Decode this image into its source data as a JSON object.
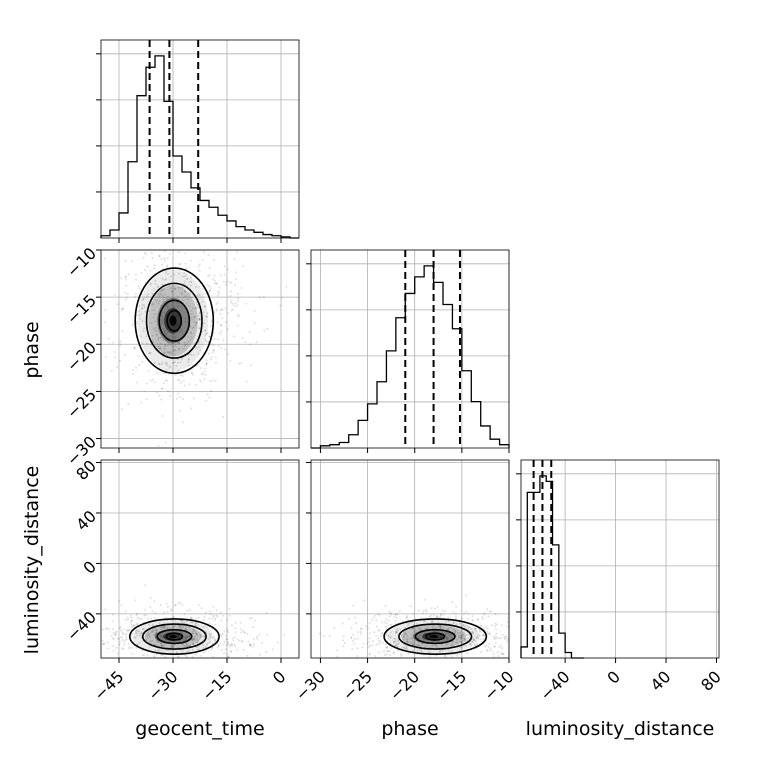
{
  "chart_data": {
    "type": "corner",
    "parameters": [
      "geocent_time",
      "phase",
      "luminosity_distance"
    ],
    "ranges": {
      "geocent_time": [
        -50,
        5
      ],
      "phase": [
        -31,
        -10
      ],
      "luminosity_distance": [
        -75,
        82
      ]
    },
    "ticks": {
      "geocent_time": [
        -45,
        -30,
        -15,
        0
      ],
      "phase": [
        -30,
        -25,
        -20,
        -15,
        -10
      ],
      "luminosity_distance": [
        -40,
        0,
        40,
        80
      ]
    },
    "xlabels": [
      "geocent_time",
      "phase",
      "luminosity_distance"
    ],
    "ylabels": [
      "",
      "phase",
      "luminosity_distance"
    ],
    "grid": true,
    "quantiles": {
      "geocent_time": [
        -36.5,
        -31,
        -23
      ],
      "phase": [
        -21,
        -18,
        -15.2
      ],
      "luminosity_distance": [
        -65,
        -58,
        -51
      ]
    },
    "marginals": [
      {
        "param": "geocent_time",
        "bin_edges": [
          -50,
          -47.5,
          -45,
          -42.5,
          -40,
          -37.5,
          -35,
          -32.5,
          -30,
          -27.5,
          -25,
          -22.5,
          -20,
          -17.5,
          -15,
          -12.5,
          -10,
          -7.5,
          -5,
          -2.5,
          0,
          2.5,
          5
        ],
        "counts": [
          2,
          7,
          22,
          67,
          125,
          150,
          160,
          120,
          72,
          58,
          44,
          33,
          27,
          20,
          15,
          10,
          7,
          5,
          3,
          2,
          1,
          0
        ]
      },
      {
        "param": "phase",
        "bin_edges": [
          -31,
          -30,
          -29,
          -28,
          -27,
          -26,
          -25,
          -24,
          -23,
          -22,
          -21,
          -20,
          -19,
          -18,
          -17,
          -16,
          -15,
          -14,
          -13,
          -12,
          -11,
          -10
        ],
        "counts": [
          0,
          2,
          3,
          5,
          12,
          25,
          40,
          60,
          88,
          118,
          140,
          155,
          165,
          150,
          130,
          108,
          70,
          42,
          20,
          8,
          3
        ]
      },
      {
        "param": "luminosity_distance",
        "bin_edges": [
          -75,
          -70,
          -65,
          -60,
          -55,
          -50,
          -45,
          -40,
          -35,
          -30,
          -25
        ],
        "counts": [
          8,
          120,
          120,
          132,
          128,
          82,
          18,
          4,
          0,
          0
        ]
      }
    ],
    "joint": [
      {
        "x": "geocent_time",
        "y": "phase",
        "peak": [
          -30,
          -17.5
        ],
        "spread": [
          7,
          3.6
        ],
        "n_points": 700
      },
      {
        "x": "geocent_time",
        "y": "luminosity_distance",
        "peak": [
          -30,
          -58
        ],
        "spread": [
          8,
          9
        ],
        "n_points": 700
      },
      {
        "x": "phase",
        "y": "luminosity_distance",
        "peak": [
          -18,
          -58
        ],
        "spread": [
          3.5,
          9
        ],
        "n_points": 700
      }
    ]
  }
}
